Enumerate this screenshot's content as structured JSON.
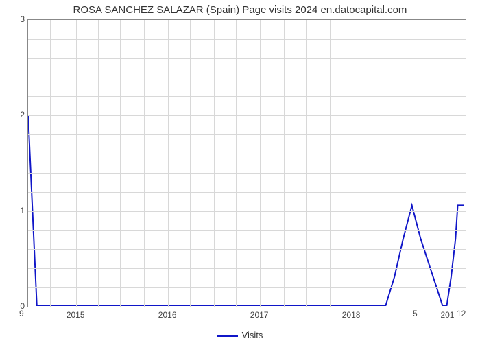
{
  "chart": {
    "type": "line",
    "title": "ROSA SANCHEZ SALAZAR (Spain) Page visits 2024 en.datocapital.com",
    "title_fontsize": 15,
    "background_color": "#ffffff",
    "grid_color": "#d8d8d8",
    "axis_color": "#888888",
    "text_color": "#444444",
    "series": {
      "name": "Visits",
      "color": "#1016c8",
      "line_width": 2,
      "x": [
        0.0,
        0.01,
        0.02,
        0.025,
        0.03,
        0.1,
        0.3,
        0.5,
        0.7,
        0.8,
        0.82,
        0.84,
        0.86,
        0.88,
        0.9,
        0.95,
        0.96,
        0.97,
        0.98,
        0.985,
        0.99,
        1.0
      ],
      "y": [
        2.0,
        1.0,
        0.0,
        0.0,
        0.0,
        0.0,
        0.0,
        0.0,
        0.0,
        0.0,
        0.0,
        0.3,
        0.7,
        1.05,
        0.7,
        0.0,
        0.0,
        0.3,
        0.7,
        1.05,
        1.05,
        1.05
      ]
    },
    "ylim": [
      0,
      3
    ],
    "yticks": [
      0,
      1,
      2,
      3
    ],
    "y_minor_grid": [
      0.2,
      0.4,
      0.6,
      0.8,
      1.2,
      1.4,
      1.6,
      1.8,
      2.2,
      2.4,
      2.6,
      2.8
    ],
    "xticks": [
      {
        "pos": 0.11,
        "label": "2015"
      },
      {
        "pos": 0.32,
        "label": "2016"
      },
      {
        "pos": 0.53,
        "label": "2017"
      },
      {
        "pos": 0.74,
        "label": "2018"
      },
      {
        "pos": 0.96,
        "label": "201"
      }
    ],
    "x_minor_grid": [
      0.05,
      0.16,
      0.21,
      0.265,
      0.37,
      0.425,
      0.475,
      0.585,
      0.635,
      0.69,
      0.795,
      0.85,
      0.905
    ],
    "corner_labels": {
      "bottom_left": "9",
      "bottom_right_a": "5",
      "bottom_right_b": "12"
    },
    "legend_label": "Visits"
  }
}
